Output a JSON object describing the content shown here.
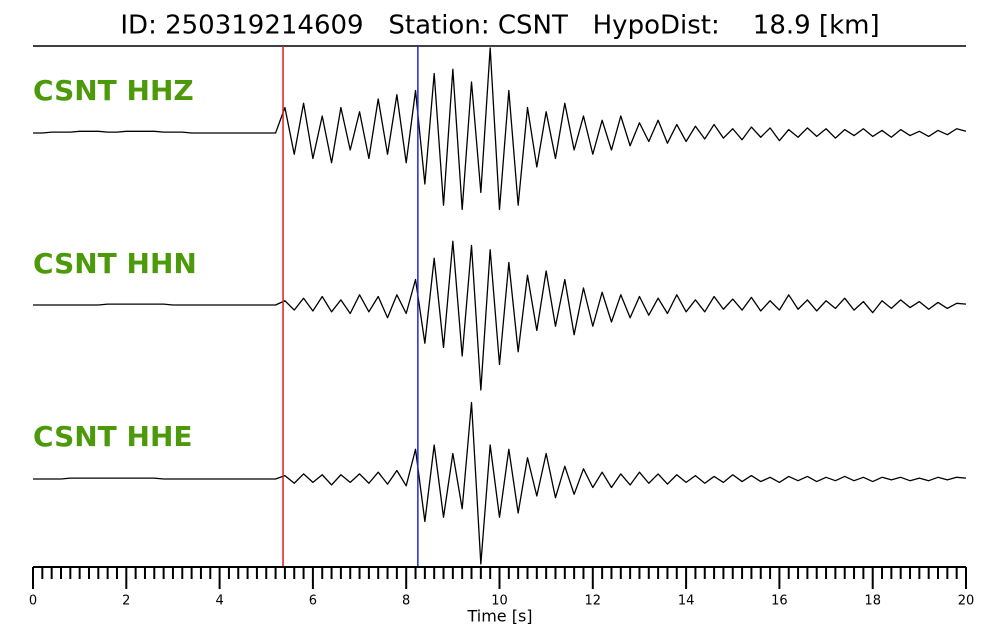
{
  "chart_data": {
    "type": "seismogram",
    "title": "ID: 250319214609   Station: CSNT   HypoDist:    18.9 [km]",
    "xlabel": "Time [s]",
    "xlim": [
      0,
      20
    ],
    "xticks": [
      0,
      2,
      4,
      6,
      8,
      10,
      12,
      14,
      16,
      18,
      20
    ],
    "xticks_minor": [
      0.2,
      0.4,
      0.6,
      0.8,
      1,
      1.2,
      1.4,
      1.6,
      1.8,
      2.2,
      2.4,
      2.6,
      2.8,
      3,
      3.2,
      3.4,
      3.6,
      3.8,
      4.2,
      4.4,
      4.6,
      4.8,
      5,
      5.2,
      5.4,
      5.6,
      5.8,
      6.2,
      6.4,
      6.6,
      6.8,
      7,
      7.2,
      7.4,
      7.6,
      7.8,
      8.2,
      8.4,
      8.6,
      8.8,
      9,
      9.2,
      9.4,
      9.6,
      9.8,
      10.2,
      10.4,
      10.6,
      10.8,
      11,
      11.2,
      11.4,
      11.6,
      11.8,
      12.2,
      12.4,
      12.6,
      12.8,
      13,
      13.2,
      13.4,
      13.6,
      13.8,
      14.2,
      14.4,
      14.6,
      14.8,
      15,
      15.2,
      15.4,
      15.6,
      15.8,
      16.2,
      16.4,
      16.6,
      16.8,
      17,
      17.2,
      17.4,
      17.6,
      17.8,
      18.2,
      18.4,
      18.6,
      18.8,
      19,
      19.2,
      19.4,
      19.6,
      19.8
    ],
    "p_pick": 5.36,
    "p_color": "#e41a1c",
    "s_pick": 8.25,
    "s_color": "#1f2bd6",
    "ylim": [
      -1,
      1
    ],
    "x": [
      0,
      0.2,
      0.4,
      0.6,
      0.8,
      1,
      1.2,
      1.4,
      1.6,
      1.8,
      2,
      2.2,
      2.4,
      2.6,
      2.8,
      3,
      3.2,
      3.4,
      3.6,
      3.8,
      4,
      4.2,
      4.4,
      4.6,
      4.8,
      5,
      5.2,
      5.4,
      5.6,
      5.8,
      6,
      6.2,
      6.4,
      6.6,
      6.8,
      7,
      7.2,
      7.4,
      7.6,
      7.8,
      8,
      8.2,
      8.4,
      8.6,
      8.8,
      9,
      9.2,
      9.4,
      9.6,
      9.8,
      10,
      10.2,
      10.4,
      10.6,
      10.8,
      11,
      11.2,
      11.4,
      11.6,
      11.8,
      12,
      12.2,
      12.4,
      12.6,
      12.8,
      13,
      13.2,
      13.4,
      13.6,
      13.8,
      14,
      14.2,
      14.4,
      14.6,
      14.8,
      15,
      15.2,
      15.4,
      15.6,
      15.8,
      16,
      16.2,
      16.4,
      16.6,
      16.8,
      17,
      17.2,
      17.4,
      17.6,
      17.8,
      18,
      18.2,
      18.4,
      18.6,
      18.8,
      19,
      19.2,
      19.4,
      19.6,
      19.8,
      20
    ],
    "series": [
      {
        "name": "CSNT HHZ",
        "color": "#000000",
        "values": [
          0,
          0,
          0.01,
          0.01,
          0.01,
          0.02,
          0.02,
          0.02,
          0.01,
          0.01,
          0.02,
          0.02,
          0.02,
          0.02,
          0.01,
          0.01,
          0.01,
          0,
          0,
          0,
          0,
          0,
          0,
          0,
          0,
          0,
          0,
          0.3,
          -0.25,
          0.35,
          -0.3,
          0.2,
          -0.35,
          0.3,
          -0.2,
          0.25,
          -0.3,
          0.4,
          -0.25,
          0.45,
          -0.35,
          0.5,
          -0.6,
          0.7,
          -0.85,
          0.75,
          -0.9,
          0.6,
          -0.7,
          1.0,
          -0.9,
          0.5,
          -0.85,
          0.3,
          -0.4,
          0.25,
          -0.3,
          0.35,
          -0.2,
          0.2,
          -0.25,
          0.15,
          -0.2,
          0.2,
          -0.15,
          0.12,
          -0.1,
          0.15,
          -0.12,
          0.1,
          -0.1,
          0.08,
          -0.07,
          0.1,
          -0.06,
          0.05,
          -0.08,
          0.07,
          -0.05,
          0.06,
          -0.09,
          0.04,
          -0.05,
          0.06,
          -0.04,
          0.05,
          -0.06,
          0.04,
          -0.03,
          0.05,
          -0.04,
          0.03,
          -0.05,
          0.04,
          -0.03,
          0.02,
          -0.04,
          0.03,
          -0.02,
          0.05,
          0.02
        ]
      },
      {
        "name": "CSNT HHN",
        "color": "#000000",
        "values": [
          0,
          0,
          0,
          0,
          0,
          0,
          0,
          0,
          0.01,
          0.01,
          0.01,
          0.01,
          0.01,
          0.01,
          0.01,
          0,
          0,
          0,
          0,
          0,
          0,
          0,
          0,
          0,
          0,
          0,
          0,
          0.05,
          -0.06,
          0.08,
          -0.07,
          0.1,
          -0.08,
          0.06,
          -0.1,
          0.12,
          -0.08,
          0.1,
          -0.15,
          0.12,
          -0.1,
          0.3,
          -0.45,
          0.55,
          -0.5,
          0.75,
          -0.6,
          0.7,
          -1.0,
          0.65,
          -0.7,
          0.5,
          -0.55,
          0.35,
          -0.3,
          0.4,
          -0.25,
          0.3,
          -0.35,
          0.2,
          -0.25,
          0.15,
          -0.2,
          0.12,
          -0.15,
          0.1,
          -0.12,
          0.08,
          -0.1,
          0.12,
          -0.08,
          0.06,
          -0.08,
          0.1,
          -0.05,
          0.07,
          -0.06,
          0.09,
          -0.07,
          0.05,
          -0.06,
          0.12,
          -0.05,
          0.06,
          -0.07,
          0.05,
          -0.04,
          0.08,
          -0.06,
          0.04,
          -0.09,
          0.05,
          -0.04,
          0.06,
          -0.03,
          0.04,
          -0.05,
          0.03,
          -0.04,
          0.02,
          0.01
        ]
      },
      {
        "name": "CSNT HHE",
        "color": "#000000",
        "values": [
          0,
          0,
          0,
          0,
          0.01,
          0.01,
          0.01,
          0.01,
          0.01,
          0.01,
          0.01,
          0.01,
          0.01,
          0.01,
          0,
          0,
          0,
          0,
          0,
          0,
          0,
          0,
          0,
          0,
          0,
          0,
          0,
          0.04,
          -0.05,
          0.06,
          -0.04,
          0.05,
          -0.07,
          0.05,
          -0.04,
          0.06,
          -0.05,
          0.08,
          -0.06,
          0.1,
          -0.08,
          0.35,
          -0.5,
          0.4,
          -0.45,
          0.3,
          -0.35,
          0.9,
          -1.0,
          0.4,
          -0.45,
          0.35,
          -0.4,
          0.25,
          -0.2,
          0.3,
          -0.22,
          0.15,
          -0.18,
          0.12,
          -0.1,
          0.08,
          -0.1,
          0.06,
          -0.07,
          0.08,
          -0.05,
          0.06,
          -0.06,
          0.05,
          -0.04,
          0.04,
          -0.05,
          0.03,
          -0.04,
          0.05,
          -0.03,
          0.04,
          -0.03,
          0.02,
          -0.04,
          0.03,
          -0.02,
          0.03,
          -0.03,
          0.02,
          -0.02,
          0.03,
          -0.02,
          0.02,
          -0.03,
          0.02,
          -0.01,
          0.02,
          -0.02,
          0.01,
          -0.02,
          0.02,
          -0.01,
          0.02,
          0.01
        ]
      }
    ]
  }
}
